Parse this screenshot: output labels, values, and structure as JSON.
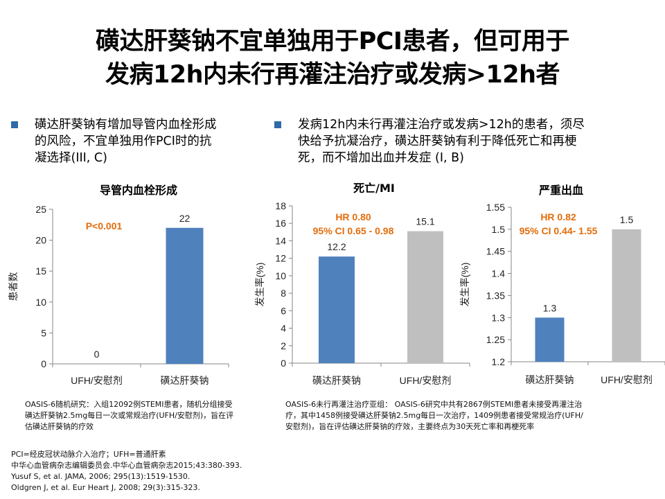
{
  "title": {
    "line1": "磺达肝葵钠不宜单独用于PCI患者，但可用于",
    "line2": "发病12h内未行再灌注治疗或发病>12h者"
  },
  "bullets": {
    "left": {
      "l1": "磺达肝葵钠有增加导管内血栓形成",
      "l2": "的风险，不宜单独用作PCI时的抗",
      "l3": "凝选择(III, C)"
    },
    "right": {
      "l1": "发病12h内未行再灌注治疗或发病>12h的患者，须尽",
      "l2": "快给予抗凝治疗，磺达肝葵钠有利于降低死亡和再梗",
      "l3": "死，而不增加出血并发症 (I, B)"
    }
  },
  "colors": {
    "blue": "#4f81bd",
    "gray": "#bfbfbf",
    "orange": "#e46c0a",
    "bullet": "#2e6aa7"
  },
  "chart_data": [
    {
      "type": "bar",
      "title": "导管内血栓形成",
      "ylabel": "患者数",
      "xlabel": "",
      "categories": [
        "UFH/安慰剂",
        "磺达肝葵钠"
      ],
      "values": [
        0,
        22
      ],
      "value_labels": [
        "0",
        "22"
      ],
      "colors": [
        "#4f81bd",
        "#4f81bd"
      ],
      "ylim": [
        0,
        25
      ],
      "yticks": [
        "0",
        "5",
        "10",
        "15",
        "20",
        "25"
      ],
      "annotation": {
        "line1": "P<0.001",
        "line2": ""
      }
    },
    {
      "type": "bar",
      "title": "死亡/MI",
      "ylabel": "发生率(%)",
      "xlabel": "",
      "categories": [
        "磺达肝葵钠",
        "UFH/安慰剂"
      ],
      "values": [
        12.2,
        15.1
      ],
      "value_labels": [
        "12.2",
        "15.1"
      ],
      "colors": [
        "#4f81bd",
        "#bfbfbf"
      ],
      "ylim": [
        0,
        18
      ],
      "yticks": [
        "0",
        "2",
        "4",
        "6",
        "8",
        "10",
        "12",
        "14",
        "16",
        "18"
      ],
      "annotation": {
        "line1": "HR 0.80",
        "line2": "95% CI 0.65 - 0.98"
      }
    },
    {
      "type": "bar",
      "title": "严重出血",
      "ylabel": "发生率(%)",
      "xlabel": "",
      "categories": [
        "磺达肝葵钠",
        "UFH/安慰剂"
      ],
      "values": [
        1.3,
        1.5
      ],
      "value_labels": [
        "1.3",
        "1.5"
      ],
      "colors": [
        "#4f81bd",
        "#bfbfbf"
      ],
      "ylim": [
        1.2,
        1.55
      ],
      "yticks": [
        "1.2",
        "1.25",
        "1.3",
        "1.35",
        "1.4",
        "1.45",
        "1.5",
        "1.55"
      ],
      "annotation": {
        "line1": "HR 0.82",
        "line2": "95% CI 0.44- 1.55"
      }
    }
  ],
  "notes": {
    "left": {
      "l1": "OASIS-6随机研究：入组12092例STEMI患者，随机分组接受",
      "l2": "磺达肝葵钠2.5mg每日一次或常规治疗(UFH/安慰剂)，旨在评",
      "l3": "估磺达肝葵钠的疗效"
    },
    "right": {
      "l1": "OASIS-6未行再灌注治疗亚组： OASIS-6研究中共有2867例STEMI患者未接受再灌注治",
      "l2": "疗，其中1458例接受磺达肝葵钠2.5mg每日一次治疗，1409例患者接受常规治疗(UFH/",
      "l3": "安慰剂)，旨在评估磺达肝葵钠的疗效，主要终点为30天死亡率和再梗死率"
    }
  },
  "references": {
    "r1": "PCI=经皮冠状动脉介入治疗；UFH=普通肝素",
    "r2": "中华心血管病杂志编辑委员会.中华心血管病杂志2015;43:380-393.",
    "r3": "Yusuf S, et al. JAMA, 2006; 295(13):1519-1530.",
    "r4": "Oldgren J, et al. Eur Heart J, 2008; 29(3):315-323."
  }
}
